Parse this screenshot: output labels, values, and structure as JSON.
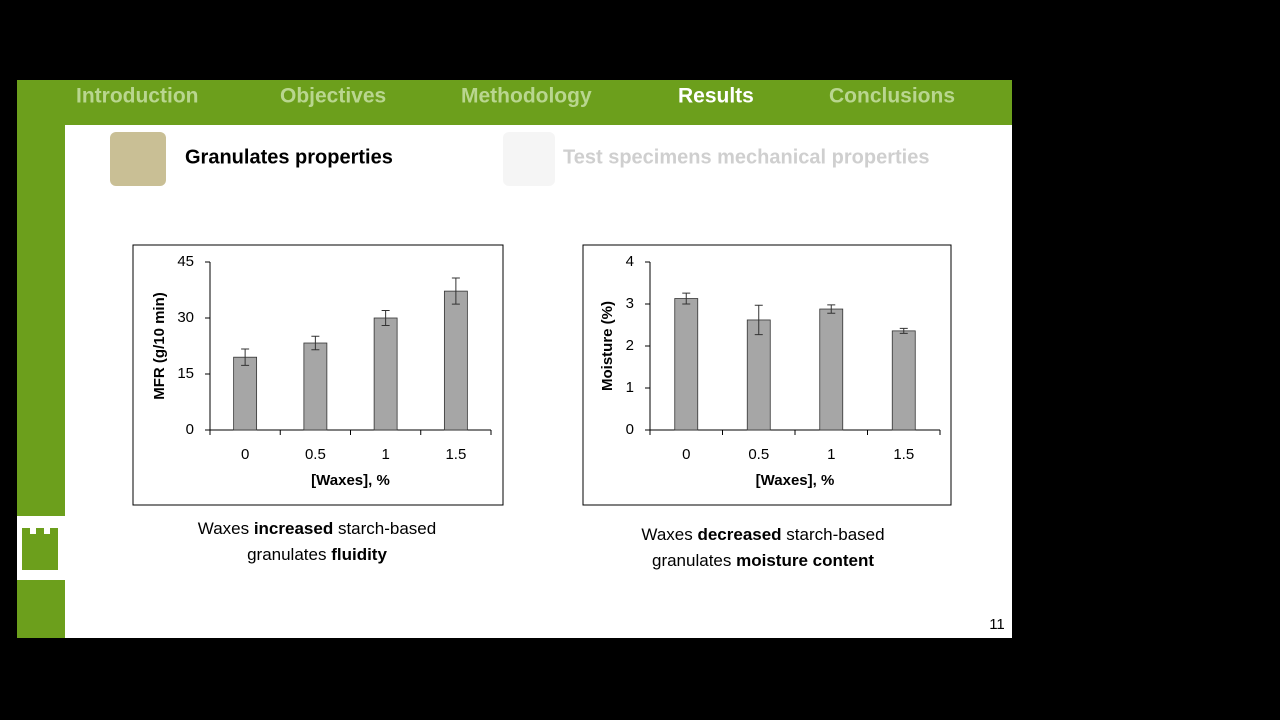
{
  "nav": [
    "Introduction",
    "Objectives",
    "Methodology",
    "Results",
    "Conclusions"
  ],
  "section_titles": [
    "Granulates properties",
    "Test specimens mechanical properties"
  ],
  "chart_data": [
    {
      "type": "bar",
      "y_label": "MFR (g/10 min)",
      "x_label": "[Waxes], %",
      "categories": [
        "0",
        "0.5",
        "1",
        "1.5"
      ],
      "values": [
        19.5,
        23.3,
        30.0,
        37.2
      ],
      "errors": [
        2.2,
        1.8,
        2.0,
        3.5
      ],
      "color": "#a6a6a6",
      "ylim": [
        0,
        45
      ],
      "yticks": [
        0,
        15,
        30,
        45
      ],
      "caption": [
        [
          {
            "text": "Waxes ",
            "bold": false
          },
          {
            "text": "increased",
            "bold": true
          },
          {
            "text": " starch-based",
            "bold": false
          }
        ],
        [
          {
            "text": "granulates ",
            "bold": false
          },
          {
            "text": "fluidity",
            "bold": true
          }
        ]
      ]
    },
    {
      "type": "bar",
      "y_label": "Moisture (%)",
      "x_label": "[Waxes], %",
      "categories": [
        "0",
        "0.5",
        "1",
        "1.5"
      ],
      "values": [
        3.13,
        2.62,
        2.88,
        2.36
      ],
      "errors": [
        0.13,
        0.35,
        0.1,
        0.06
      ],
      "color": "#a6a6a6",
      "ylim": [
        0,
        4
      ],
      "yticks": [
        0,
        1,
        2,
        3,
        4
      ],
      "caption": [
        [
          {
            "text": "Waxes ",
            "bold": false
          },
          {
            "text": "decreased",
            "bold": true
          },
          {
            "text": " starch-based",
            "bold": false
          }
        ],
        [
          {
            "text": "granulates ",
            "bold": false
          },
          {
            "text": "moisture content",
            "bold": true
          }
        ]
      ]
    }
  ],
  "page_number": 11
}
